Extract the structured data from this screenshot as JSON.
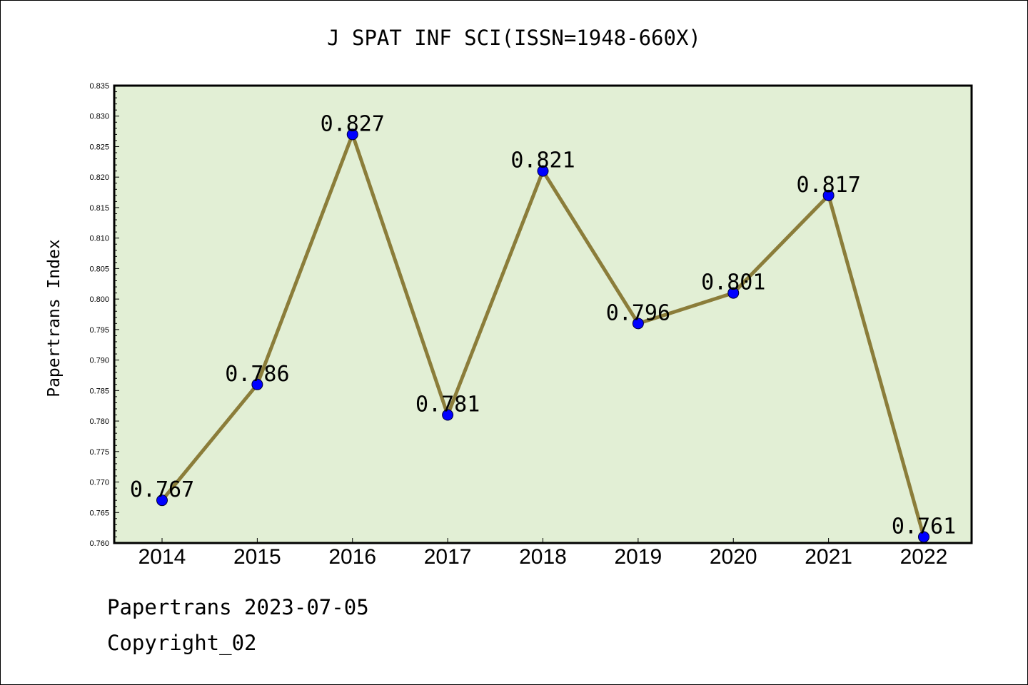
{
  "title": "J SPAT INF SCI(ISSN=1948-660X)",
  "footer": {
    "line1": "Papertrans 2023-07-05",
    "line2": "Copyright_02"
  },
  "colors": {
    "plot_background": "#e2efd5",
    "line": "#8b7d3a",
    "marker": "#0000ff"
  },
  "chart_data": {
    "type": "line",
    "title": "J SPAT INF SCI(ISSN=1948-660X)",
    "xlabel": "",
    "ylabel": "Papertrans Index",
    "categories": [
      "2014",
      "2015",
      "2016",
      "2017",
      "2018",
      "2019",
      "2020",
      "2021",
      "2022"
    ],
    "values": [
      0.767,
      0.786,
      0.827,
      0.781,
      0.821,
      0.796,
      0.801,
      0.817,
      0.761
    ],
    "data_labels": [
      "0.767",
      "0.786",
      "0.827",
      "0.781",
      "0.821",
      "0.796",
      "0.801",
      "0.817",
      "0.761"
    ],
    "ylim": [
      0.76,
      0.835
    ],
    "yticks": [
      "0.760",
      "0.765",
      "0.770",
      "0.775",
      "0.780",
      "0.785",
      "0.790",
      "0.795",
      "0.800",
      "0.805",
      "0.810",
      "0.815",
      "0.820",
      "0.825",
      "0.830",
      "0.835"
    ],
    "grid": false,
    "legend": "none"
  }
}
